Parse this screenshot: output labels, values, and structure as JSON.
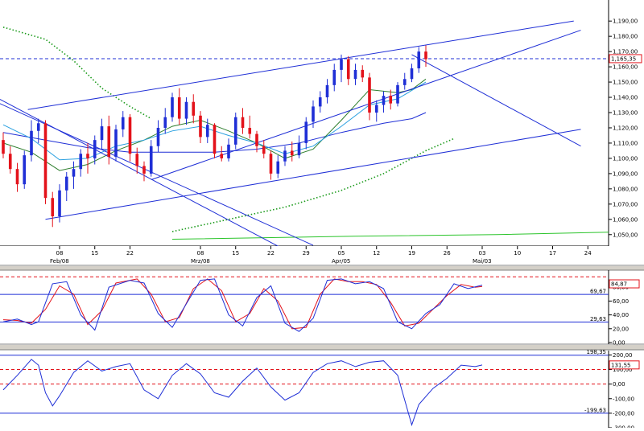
{
  "colors": {
    "background": "#ffffff",
    "grid": "#c8c8c8",
    "candle_up": "#1f2fd6",
    "candle_down": "#e3121a",
    "trendline": "#1f2fd6",
    "ma_short": "#2aa0e0",
    "ma_mid": "#2f7f2f",
    "ma_long": "#1f2fd6",
    "dotted_green": "#1a9a1a",
    "green_line": "#2bc42b",
    "stoch_k": "#1f2fd6",
    "stoch_d": "#e3121a",
    "cci_line": "#1f2fd6",
    "dashed_ref": "#e3121a"
  },
  "chart_data": [
    {
      "type": "line",
      "panel": "price",
      "y_ticks": [
        "1,190,00",
        "1,180,00",
        "1,170,00",
        "1,160,00",
        "1,150,00",
        "1,140,00",
        "1,130,00",
        "1,120,00",
        "1,110,00",
        "1,100,00",
        "1,090,00",
        "1,080,00",
        "1,070,00",
        "1,060,00",
        "1,050,00"
      ],
      "y_values": [
        1.19,
        1.18,
        1.17,
        1.16,
        1.15,
        1.14,
        1.13,
        1.12,
        1.11,
        1.1,
        1.09,
        1.08,
        1.07,
        1.06,
        1.05
      ],
      "ylim": [
        1.0425,
        1.2038
      ],
      "current_price_label": "1,165,35",
      "current_price": 1.16535,
      "x_ticks": [
        {
          "label": "08",
          "slot": 8
        },
        {
          "label": "15",
          "slot": 13
        },
        {
          "label": "22",
          "slot": 18
        },
        {
          "label": "08",
          "slot": 28
        },
        {
          "label": "15",
          "slot": 33
        },
        {
          "label": "22",
          "slot": 38
        },
        {
          "label": "29",
          "slot": 43
        },
        {
          "label": "05",
          "slot": 48
        },
        {
          "label": "12",
          "slot": 53
        },
        {
          "label": "19",
          "slot": 58
        },
        {
          "label": "26",
          "slot": 63
        },
        {
          "label": "03",
          "slot": 68
        },
        {
          "label": "10",
          "slot": 73
        },
        {
          "label": "17",
          "slot": 78
        },
        {
          "label": "24",
          "slot": 83
        }
      ],
      "month_labels": [
        {
          "label": "Feb/08",
          "slot": 8
        },
        {
          "label": "Mrz/08",
          "slot": 28
        },
        {
          "label": "Apr/05",
          "slot": 48
        },
        {
          "label": "Mai/03",
          "slot": 68
        }
      ],
      "candles": [
        [
          1.112,
          1.117,
          1.1,
          1.103
        ],
        [
          1.103,
          1.108,
          1.09,
          1.093
        ],
        [
          1.093,
          1.097,
          1.078,
          1.083
        ],
        [
          1.083,
          1.105,
          1.08,
          1.102
        ],
        [
          1.102,
          1.125,
          1.098,
          1.118
        ],
        [
          1.118,
          1.126,
          1.11,
          1.123
        ],
        [
          1.123,
          1.125,
          1.07,
          1.074
        ],
        [
          1.074,
          1.078,
          1.055,
          1.062
        ],
        [
          1.062,
          1.083,
          1.058,
          1.079
        ],
        [
          1.079,
          1.091,
          1.072,
          1.088
        ],
        [
          1.088,
          1.098,
          1.08,
          1.093
        ],
        [
          1.093,
          1.106,
          1.088,
          1.103
        ],
        [
          1.103,
          1.11,
          1.09,
          1.1
        ],
        [
          1.1,
          1.115,
          1.096,
          1.112
        ],
        [
          1.112,
          1.126,
          1.106,
          1.121
        ],
        [
          1.121,
          1.128,
          1.096,
          1.101
        ],
        [
          1.101,
          1.122,
          1.098,
          1.119
        ],
        [
          1.119,
          1.131,
          1.114,
          1.127
        ],
        [
          1.127,
          1.129,
          1.098,
          1.103
        ],
        [
          1.103,
          1.107,
          1.09,
          1.095
        ],
        [
          1.095,
          1.098,
          1.085,
          1.09
        ],
        [
          1.09,
          1.112,
          1.088,
          1.108
        ],
        [
          1.108,
          1.125,
          1.104,
          1.12
        ],
        [
          1.12,
          1.133,
          1.116,
          1.127
        ],
        [
          1.127,
          1.143,
          1.124,
          1.14
        ],
        [
          1.14,
          1.146,
          1.122,
          1.126
        ],
        [
          1.126,
          1.14,
          1.122,
          1.137
        ],
        [
          1.137,
          1.142,
          1.123,
          1.128
        ],
        [
          1.128,
          1.131,
          1.11,
          1.114
        ],
        [
          1.114,
          1.126,
          1.11,
          1.122
        ],
        [
          1.122,
          1.123,
          1.1,
          1.103
        ],
        [
          1.103,
          1.108,
          1.098,
          1.1
        ],
        [
          1.1,
          1.113,
          1.098,
          1.109
        ],
        [
          1.109,
          1.13,
          1.106,
          1.127
        ],
        [
          1.127,
          1.133,
          1.116,
          1.12
        ],
        [
          1.12,
          1.128,
          1.113,
          1.116
        ],
        [
          1.116,
          1.118,
          1.104,
          1.108
        ],
        [
          1.108,
          1.112,
          1.1,
          1.103
        ],
        [
          1.103,
          1.105,
          1.086,
          1.09
        ],
        [
          1.09,
          1.102,
          1.087,
          1.098
        ],
        [
          1.098,
          1.108,
          1.095,
          1.105
        ],
        [
          1.105,
          1.111,
          1.098,
          1.102
        ],
        [
          1.102,
          1.115,
          1.1,
          1.11
        ],
        [
          1.11,
          1.127,
          1.106,
          1.124
        ],
        [
          1.124,
          1.138,
          1.12,
          1.134
        ],
        [
          1.134,
          1.144,
          1.13,
          1.14
        ],
        [
          1.14,
          1.152,
          1.136,
          1.148
        ],
        [
          1.148,
          1.162,
          1.144,
          1.158
        ],
        [
          1.158,
          1.168,
          1.15,
          1.165
        ],
        [
          1.165,
          1.167,
          1.148,
          1.152
        ],
        [
          1.152,
          1.162,
          1.148,
          1.158
        ],
        [
          1.158,
          1.161,
          1.15,
          1.153
        ],
        [
          1.153,
          1.156,
          1.125,
          1.13
        ],
        [
          1.13,
          1.138,
          1.124,
          1.135
        ],
        [
          1.135,
          1.144,
          1.13,
          1.141
        ],
        [
          1.141,
          1.145,
          1.132,
          1.136
        ],
        [
          1.136,
          1.15,
          1.134,
          1.148
        ],
        [
          1.148,
          1.156,
          1.145,
          1.152
        ],
        [
          1.152,
          1.162,
          1.15,
          1.159
        ],
        [
          1.159,
          1.173,
          1.156,
          1.17
        ],
        [
          1.17,
          1.174,
          1.16,
          1.165
        ]
      ],
      "candle_slots": [
        0,
        1,
        2,
        3,
        4,
        5,
        6,
        7,
        8,
        9,
        10,
        11,
        12,
        13,
        14,
        15,
        16,
        17,
        18,
        19,
        20,
        21,
        22,
        23,
        24,
        25,
        26,
        27,
        28,
        29,
        30,
        31,
        32,
        33,
        34,
        35,
        36,
        37,
        38,
        39,
        40,
        41,
        42,
        43,
        44,
        45,
        46,
        47,
        48,
        49,
        50,
        51,
        52,
        53,
        54,
        55,
        56,
        57,
        58,
        59,
        60
      ],
      "trendlines": [
        {
          "from": [
            3.5,
            1.132
          ],
          "to": [
            81.0,
            1.19
          ]
        },
        {
          "from": [
            6.0,
            1.06
          ],
          "to": [
            82.0,
            1.119
          ]
        },
        {
          "from": [
            21.0,
            1.086
          ],
          "to": [
            82.0,
            1.184
          ]
        },
        {
          "from": [
            -1.0,
            1.14
          ],
          "to": [
            40.0,
            1.04
          ]
        },
        {
          "from": [
            -1.0,
            1.137
          ],
          "to": [
            44.0,
            1.043
          ]
        },
        {
          "from": [
            58.0,
            1.168
          ],
          "to": [
            82.0,
            1.108
          ]
        }
      ],
      "ma_short": [
        [
          0,
          1.122
        ],
        [
          4,
          1.113
        ],
        [
          8,
          1.099
        ],
        [
          12,
          1.1
        ],
        [
          16,
          1.108
        ],
        [
          20,
          1.112
        ],
        [
          24,
          1.118
        ],
        [
          28,
          1.121
        ],
        [
          32,
          1.115
        ],
        [
          36,
          1.11
        ],
        [
          40,
          1.103
        ],
        [
          44,
          1.108
        ],
        [
          48,
          1.121
        ],
        [
          52,
          1.135
        ],
        [
          56,
          1.139
        ],
        [
          60,
          1.15
        ]
      ],
      "ma_mid": [
        [
          0,
          1.11
        ],
        [
          4,
          1.104
        ],
        [
          8,
          1.092
        ],
        [
          12,
          1.096
        ],
        [
          16,
          1.105
        ],
        [
          20,
          1.112
        ],
        [
          24,
          1.121
        ],
        [
          28,
          1.125
        ],
        [
          32,
          1.118
        ],
        [
          36,
          1.11
        ],
        [
          40,
          1.1
        ],
        [
          44,
          1.106
        ],
        [
          48,
          1.125
        ],
        [
          52,
          1.145
        ],
        [
          56,
          1.143
        ],
        [
          58,
          1.145
        ],
        [
          60,
          1.152
        ]
      ],
      "ma_long": [
        [
          0,
          1.117
        ],
        [
          6,
          1.112
        ],
        [
          12,
          1.107
        ],
        [
          18,
          1.104
        ],
        [
          24,
          1.104
        ],
        [
          30,
          1.104
        ],
        [
          36,
          1.106
        ],
        [
          42,
          1.11
        ],
        [
          48,
          1.117
        ],
        [
          54,
          1.123
        ],
        [
          58,
          1.126
        ],
        [
          60,
          1.13
        ]
      ],
      "dotted_green_1": [
        [
          0,
          1.186
        ],
        [
          6,
          1.178
        ],
        [
          10,
          1.164
        ],
        [
          14,
          1.146
        ],
        [
          18,
          1.134
        ],
        [
          21,
          1.126
        ]
      ],
      "dotted_green_2": [
        [
          24,
          1.052
        ],
        [
          32,
          1.06
        ],
        [
          40,
          1.068
        ],
        [
          48,
          1.079
        ],
        [
          54,
          1.09
        ],
        [
          60,
          1.105
        ],
        [
          64,
          1.113
        ]
      ],
      "green_line": [
        [
          24,
          1.047
        ],
        [
          50,
          1.049
        ],
        [
          70,
          1.05
        ],
        [
          90,
          1.052
        ]
      ]
    },
    {
      "type": "line",
      "panel": "stochastic",
      "y_ticks": [
        "80,00",
        "60,00",
        "40,00",
        "20,00",
        "0,00"
      ],
      "y_values": [
        80,
        60,
        40,
        20,
        0
      ],
      "ylim": [
        0,
        100
      ],
      "ref_levels": [
        {
          "value": 69.67,
          "label": "69,67",
          "style": "solid"
        },
        {
          "value": 29.63,
          "label": "29,63",
          "style": "solid"
        },
        {
          "value": 95,
          "label": "",
          "style": "dashed"
        }
      ],
      "current_value_label": "84,87",
      "current_value": 84.87,
      "k": [
        [
          0,
          30
        ],
        [
          2,
          34
        ],
        [
          4,
          26
        ],
        [
          5,
          30
        ],
        [
          7,
          85
        ],
        [
          9,
          88
        ],
        [
          11,
          40
        ],
        [
          13,
          18
        ],
        [
          15,
          80
        ],
        [
          18,
          90
        ],
        [
          20,
          86
        ],
        [
          22,
          42
        ],
        [
          24,
          22
        ],
        [
          26,
          56
        ],
        [
          28,
          90
        ],
        [
          30,
          92
        ],
        [
          32,
          40
        ],
        [
          34,
          24
        ],
        [
          36,
          65
        ],
        [
          38,
          82
        ],
        [
          40,
          28
        ],
        [
          42,
          16
        ],
        [
          44,
          35
        ],
        [
          46,
          90
        ],
        [
          48,
          92
        ],
        [
          50,
          85
        ],
        [
          52,
          88
        ],
        [
          54,
          78
        ],
        [
          56,
          30
        ],
        [
          58,
          20
        ],
        [
          60,
          42
        ],
        [
          62,
          55
        ],
        [
          64,
          85
        ],
        [
          66,
          78
        ],
        [
          68,
          83
        ]
      ],
      "d": [
        [
          0,
          33
        ],
        [
          2,
          32
        ],
        [
          4,
          28
        ],
        [
          6,
          48
        ],
        [
          8,
          82
        ],
        [
          10,
          70
        ],
        [
          12,
          26
        ],
        [
          14,
          46
        ],
        [
          16,
          86
        ],
        [
          19,
          92
        ],
        [
          21,
          70
        ],
        [
          23,
          30
        ],
        [
          25,
          36
        ],
        [
          27,
          78
        ],
        [
          29,
          92
        ],
        [
          31,
          75
        ],
        [
          33,
          30
        ],
        [
          35,
          42
        ],
        [
          37,
          78
        ],
        [
          39,
          60
        ],
        [
          41,
          20
        ],
        [
          43,
          22
        ],
        [
          45,
          70
        ],
        [
          47,
          92
        ],
        [
          49,
          88
        ],
        [
          51,
          88
        ],
        [
          53,
          84
        ],
        [
          55,
          58
        ],
        [
          57,
          24
        ],
        [
          59,
          28
        ],
        [
          61,
          48
        ],
        [
          63,
          68
        ],
        [
          65,
          84
        ],
        [
          67,
          80
        ],
        [
          68,
          81
        ]
      ]
    },
    {
      "type": "line",
      "panel": "cci",
      "y_ticks": [
        "200,00",
        "100,00",
        "0,00",
        "-100,00",
        "-200,00",
        "-300,00"
      ],
      "y_values": [
        200,
        100,
        0,
        -100,
        -200,
        -300
      ],
      "ylim": [
        -300,
        230
      ],
      "ref_levels": [
        {
          "value": 198.35,
          "label": "198,35",
          "style": "solid"
        },
        {
          "value": -199.63,
          "label": "-199,63",
          "style": "solid"
        },
        {
          "value": 0,
          "label": "",
          "style": "dashed"
        },
        {
          "value": 100,
          "label": "",
          "style": "dashed"
        }
      ],
      "current_value_label": "131,55",
      "current_value": 131.55,
      "values": [
        [
          0,
          -40
        ],
        [
          2,
          60
        ],
        [
          4,
          170
        ],
        [
          5,
          130
        ],
        [
          6,
          -60
        ],
        [
          7,
          -150
        ],
        [
          8,
          -80
        ],
        [
          10,
          80
        ],
        [
          12,
          160
        ],
        [
          14,
          90
        ],
        [
          16,
          120
        ],
        [
          18,
          140
        ],
        [
          20,
          -40
        ],
        [
          22,
          -100
        ],
        [
          24,
          60
        ],
        [
          26,
          140
        ],
        [
          28,
          70
        ],
        [
          30,
          -60
        ],
        [
          32,
          -90
        ],
        [
          34,
          20
        ],
        [
          36,
          110
        ],
        [
          38,
          -20
        ],
        [
          40,
          -110
        ],
        [
          42,
          -60
        ],
        [
          44,
          80
        ],
        [
          46,
          140
        ],
        [
          48,
          160
        ],
        [
          50,
          120
        ],
        [
          52,
          150
        ],
        [
          54,
          160
        ],
        [
          56,
          60
        ],
        [
          58,
          -280
        ],
        [
          59,
          -140
        ],
        [
          61,
          -30
        ],
        [
          63,
          40
        ],
        [
          65,
          130
        ],
        [
          67,
          120
        ],
        [
          68,
          131
        ]
      ]
    }
  ]
}
